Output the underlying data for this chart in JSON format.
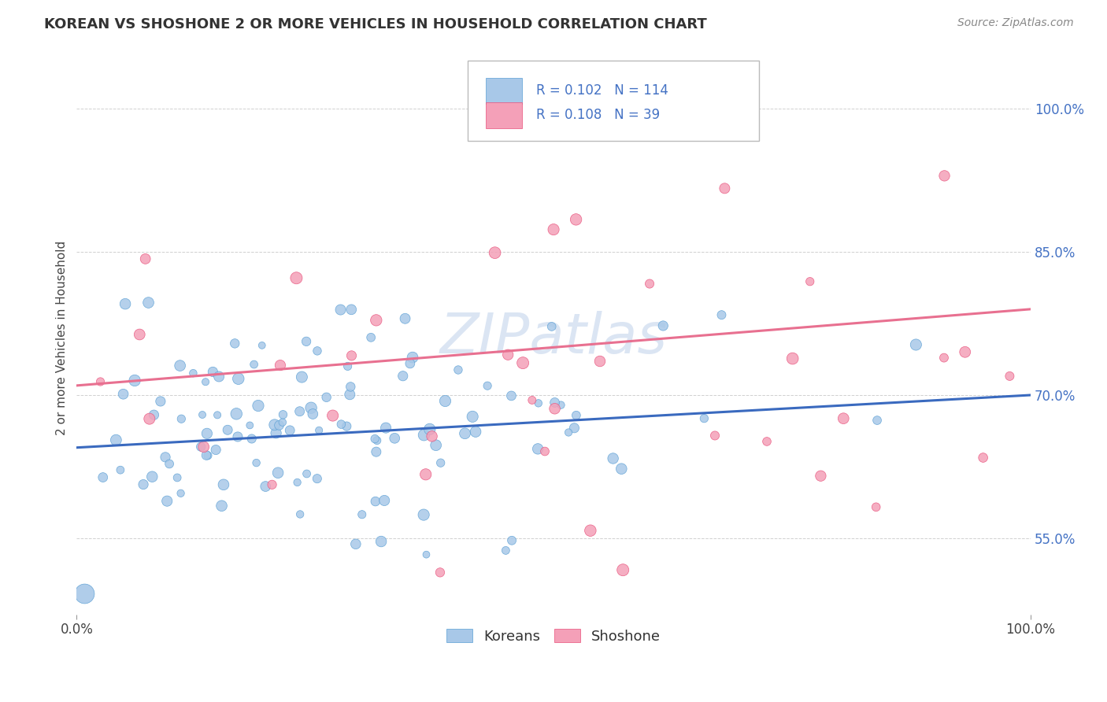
{
  "title": "KOREAN VS SHOSHONE 2 OR MORE VEHICLES IN HOUSEHOLD CORRELATION CHART",
  "source": "Source: ZipAtlas.com",
  "ylabel": "2 or more Vehicles in Household",
  "xlim": [
    0.0,
    1.0
  ],
  "ylim": [
    0.47,
    1.05
  ],
  "y_tick_values": [
    0.55,
    0.7,
    0.85,
    1.0
  ],
  "watermark": "ZIPatlas",
  "korean_color": "#a8c8e8",
  "korean_edge_color": "#5a9fd4",
  "shoshone_color": "#f4a0b8",
  "shoshone_edge_color": "#e8507a",
  "korean_line_color": "#3a6abf",
  "shoshone_line_color": "#e87090",
  "tick_label_color": "#4472c4",
  "R_korean": 0.102,
  "N_korean": 114,
  "R_shoshone": 0.108,
  "N_shoshone": 39,
  "korean_line_y0": 0.645,
  "korean_line_y1": 0.7,
  "shoshone_line_y0": 0.71,
  "shoshone_line_y1": 0.79
}
